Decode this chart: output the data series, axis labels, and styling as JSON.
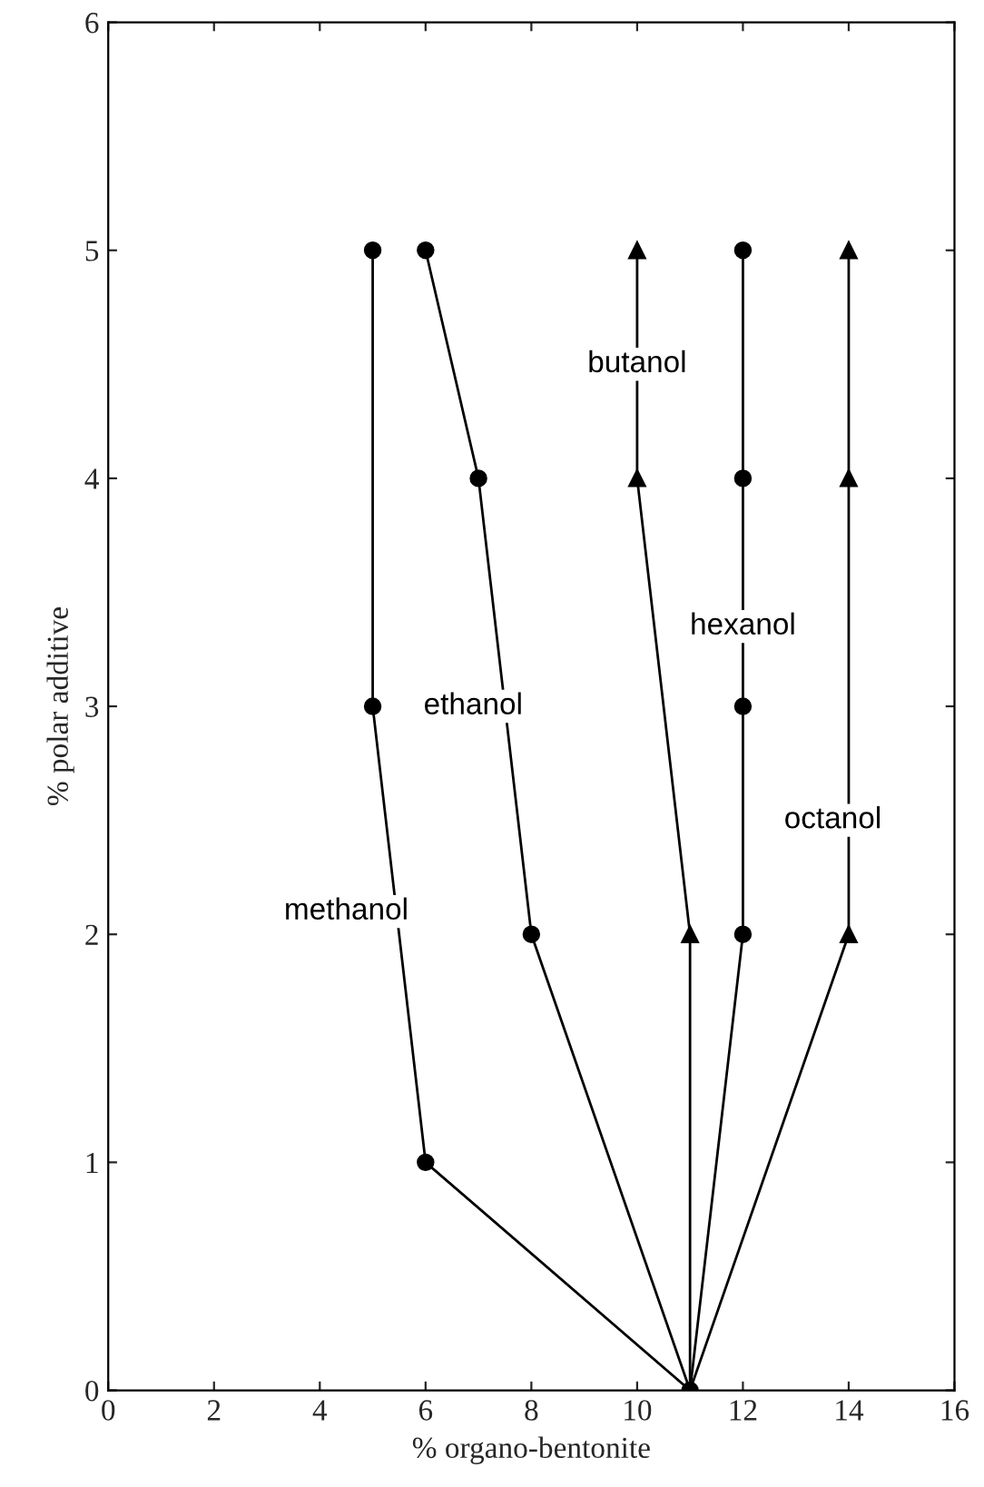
{
  "chart_data": {
    "type": "line",
    "xlabel": "% organo-bentonite",
    "ylabel": "% polar additive",
    "xlim": [
      0,
      16
    ],
    "ylim": [
      0,
      6
    ],
    "xticks": [
      0,
      2,
      4,
      6,
      8,
      10,
      12,
      14,
      16
    ],
    "yticks": [
      0,
      1,
      2,
      3,
      4,
      5,
      6
    ],
    "grid": false,
    "legend": false,
    "line_style": "solid",
    "series": [
      {
        "name": "methanol",
        "color": "#000000",
        "marker": "circle",
        "x": [
          11,
          6,
          5,
          5
        ],
        "values": [
          0,
          1,
          3,
          5
        ]
      },
      {
        "name": "ethanol",
        "color": "#000000",
        "marker": "circle",
        "x": [
          11,
          8,
          7,
          6
        ],
        "values": [
          0,
          2,
          4,
          5
        ]
      },
      {
        "name": "butanol",
        "color": "#000000",
        "marker": "triangle",
        "x": [
          11,
          11,
          10,
          10
        ],
        "values": [
          0,
          2,
          4,
          5
        ]
      },
      {
        "name": "hexanol",
        "color": "#000000",
        "marker": "circle",
        "x": [
          11,
          12,
          12,
          12,
          12
        ],
        "values": [
          0,
          2,
          3,
          4,
          5
        ]
      },
      {
        "name": "octanol",
        "color": "#000000",
        "marker": "triangle",
        "x": [
          11,
          14,
          14,
          14
        ],
        "values": [
          0,
          2,
          4,
          5
        ]
      }
    ]
  }
}
